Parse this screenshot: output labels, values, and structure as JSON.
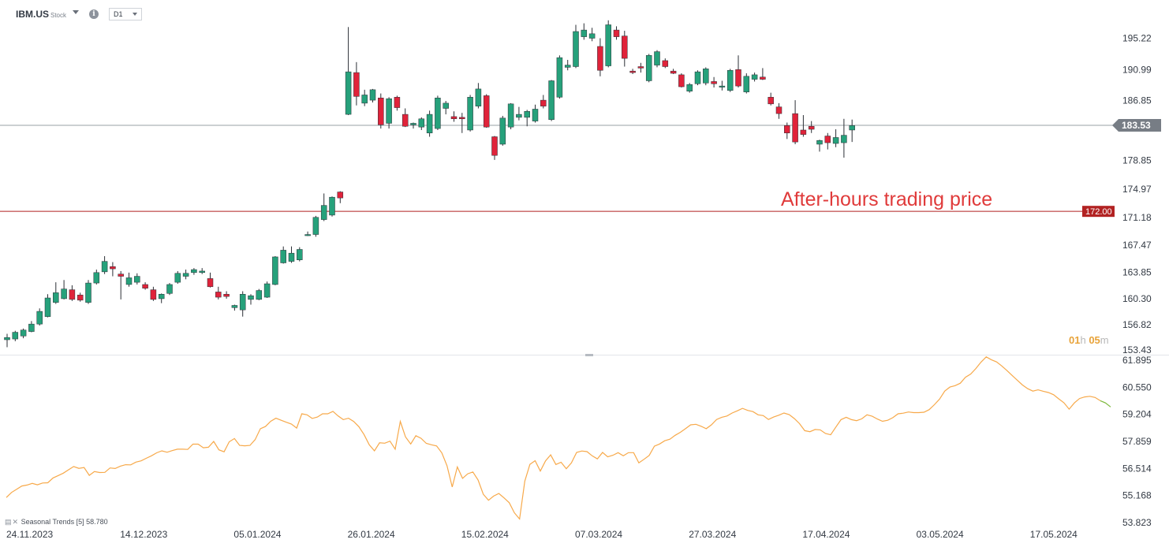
{
  "toolbar": {
    "symbol": "IBM.US",
    "instrument_type": "Stock",
    "interval": "D1",
    "info_icon": "info-icon",
    "dropdown_icon": "chevron-down-icon"
  },
  "countdown": {
    "hours": "01",
    "h": "h",
    "minutes": "05",
    "m": "m"
  },
  "indicator": {
    "name": "Seasonal  Trends  [5]  58.780",
    "icons": [
      "chart-icon",
      "close-icon"
    ]
  },
  "colors": {
    "up": "#26a17b",
    "down": "#e0233a",
    "current_line": "#9aa0a6",
    "current_tag": "#777d85",
    "after_hours": "#b22222",
    "after_hours_text": "#e03b3b",
    "seasonal_past": "#f7a94a",
    "seasonal_future": "#7cb83c",
    "axis_text": "#333a44"
  },
  "chart_data": [
    {
      "type": "candlestick",
      "symbol": "IBM.US",
      "interval": "D1",
      "ylim": [
        153.43,
        198.0
      ],
      "y_ticks": [
        "195.22",
        "190.99",
        "186.85",
        "178.85",
        "174.97",
        "171.18",
        "167.47",
        "163.85",
        "160.30",
        "156.82",
        "153.43"
      ],
      "x_ticks": [
        "24.11.2023",
        "14.12.2023",
        "05.01.2024",
        "26.01.2024",
        "15.02.2024",
        "07.03.2024",
        "27.03.2024",
        "17.04.2024",
        "03.05.2024",
        "17.05.2024"
      ],
      "x_tick_index": [
        0,
        14,
        28,
        42,
        56,
        70,
        84,
        98,
        112,
        126
      ],
      "current_price": {
        "label": "183.53",
        "value": 183.53
      },
      "after_hours": {
        "label": "172.00",
        "value": 172.0,
        "annotation": "After-hours trading price"
      },
      "candles": [
        {
          "o": 154.8,
          "h": 155.6,
          "l": 153.8,
          "c": 155.1
        },
        {
          "o": 154.9,
          "h": 156.0,
          "l": 154.6,
          "c": 155.8
        },
        {
          "o": 155.3,
          "h": 156.3,
          "l": 155.0,
          "c": 156.1
        },
        {
          "o": 155.9,
          "h": 157.3,
          "l": 155.8,
          "c": 156.9
        },
        {
          "o": 156.9,
          "h": 159.0,
          "l": 156.7,
          "c": 158.6
        },
        {
          "o": 157.9,
          "h": 160.9,
          "l": 157.8,
          "c": 160.4
        },
        {
          "o": 159.8,
          "h": 162.5,
          "l": 159.6,
          "c": 161.1
        },
        {
          "o": 160.3,
          "h": 162.8,
          "l": 160.2,
          "c": 161.6
        },
        {
          "o": 161.5,
          "h": 162.1,
          "l": 160.0,
          "c": 160.2
        },
        {
          "o": 160.8,
          "h": 161.1,
          "l": 159.9,
          "c": 160.1
        },
        {
          "o": 159.8,
          "h": 162.8,
          "l": 159.6,
          "c": 162.4
        },
        {
          "o": 162.4,
          "h": 164.2,
          "l": 162.2,
          "c": 163.8
        },
        {
          "o": 163.9,
          "h": 166.0,
          "l": 163.6,
          "c": 165.3
        },
        {
          "o": 164.6,
          "h": 165.2,
          "l": 163.3,
          "c": 164.3
        },
        {
          "o": 163.6,
          "h": 164.0,
          "l": 160.2,
          "c": 163.3
        },
        {
          "o": 162.2,
          "h": 163.8,
          "l": 161.9,
          "c": 163.1
        },
        {
          "o": 162.5,
          "h": 163.7,
          "l": 162.2,
          "c": 163.3
        },
        {
          "o": 162.2,
          "h": 162.5,
          "l": 161.5,
          "c": 161.7
        },
        {
          "o": 161.5,
          "h": 161.9,
          "l": 160.0,
          "c": 160.2
        },
        {
          "o": 160.3,
          "h": 161.0,
          "l": 159.7,
          "c": 160.9
        },
        {
          "o": 161.0,
          "h": 162.4,
          "l": 160.8,
          "c": 162.2
        },
        {
          "o": 162.5,
          "h": 164.0,
          "l": 162.3,
          "c": 163.7
        },
        {
          "o": 163.3,
          "h": 164.2,
          "l": 162.9,
          "c": 163.7
        },
        {
          "o": 163.8,
          "h": 164.4,
          "l": 163.5,
          "c": 164.2
        },
        {
          "o": 163.8,
          "h": 164.4,
          "l": 163.6,
          "c": 164.0
        },
        {
          "o": 163.0,
          "h": 163.8,
          "l": 161.8,
          "c": 161.9
        },
        {
          "o": 161.2,
          "h": 161.9,
          "l": 160.2,
          "c": 160.5
        },
        {
          "o": 160.9,
          "h": 161.3,
          "l": 160.3,
          "c": 160.6
        },
        {
          "o": 159.1,
          "h": 159.5,
          "l": 158.7,
          "c": 159.4
        },
        {
          "o": 158.8,
          "h": 161.3,
          "l": 157.9,
          "c": 160.9
        },
        {
          "o": 160.2,
          "h": 160.9,
          "l": 159.5,
          "c": 160.7
        },
        {
          "o": 160.2,
          "h": 161.6,
          "l": 160.1,
          "c": 161.4
        },
        {
          "o": 160.5,
          "h": 162.6,
          "l": 160.4,
          "c": 162.3
        },
        {
          "o": 162.2,
          "h": 166.0,
          "l": 162.1,
          "c": 165.9
        },
        {
          "o": 165.1,
          "h": 167.3,
          "l": 165.0,
          "c": 166.8
        },
        {
          "o": 165.3,
          "h": 167.3,
          "l": 165.1,
          "c": 166.4
        },
        {
          "o": 165.5,
          "h": 167.2,
          "l": 165.3,
          "c": 166.9
        },
        {
          "o": 168.9,
          "h": 169.3,
          "l": 168.7,
          "c": 168.9
        },
        {
          "o": 168.9,
          "h": 171.4,
          "l": 168.6,
          "c": 171.2
        },
        {
          "o": 170.9,
          "h": 174.4,
          "l": 170.7,
          "c": 172.8
        },
        {
          "o": 171.5,
          "h": 174.0,
          "l": 171.3,
          "c": 173.9
        },
        {
          "o": 174.6,
          "h": 174.7,
          "l": 173.1,
          "c": 173.8
        },
        {
          "o": 185.0,
          "h": 196.7,
          "l": 184.9,
          "c": 190.7
        },
        {
          "o": 190.6,
          "h": 192.0,
          "l": 186.2,
          "c": 187.4
        },
        {
          "o": 186.5,
          "h": 188.3,
          "l": 186.1,
          "c": 187.6
        },
        {
          "o": 186.9,
          "h": 188.4,
          "l": 186.6,
          "c": 188.3
        },
        {
          "o": 187.2,
          "h": 187.8,
          "l": 183.1,
          "c": 183.6
        },
        {
          "o": 183.8,
          "h": 187.3,
          "l": 183.1,
          "c": 187.1
        },
        {
          "o": 187.3,
          "h": 187.5,
          "l": 185.5,
          "c": 185.9
        },
        {
          "o": 185.0,
          "h": 185.8,
          "l": 183.3,
          "c": 183.4
        },
        {
          "o": 183.6,
          "h": 183.9,
          "l": 183.1,
          "c": 183.8
        },
        {
          "o": 183.3,
          "h": 184.6,
          "l": 182.9,
          "c": 184.4
        },
        {
          "o": 182.5,
          "h": 185.5,
          "l": 182.0,
          "c": 185.0
        },
        {
          "o": 183.1,
          "h": 187.5,
          "l": 182.9,
          "c": 187.2
        },
        {
          "o": 185.8,
          "h": 186.8,
          "l": 185.0,
          "c": 186.5
        },
        {
          "o": 184.7,
          "h": 185.4,
          "l": 184.0,
          "c": 184.4
        },
        {
          "o": 184.6,
          "h": 185.2,
          "l": 182.5,
          "c": 184.4
        },
        {
          "o": 182.9,
          "h": 187.6,
          "l": 182.7,
          "c": 187.3
        },
        {
          "o": 186.1,
          "h": 189.2,
          "l": 185.8,
          "c": 188.4
        },
        {
          "o": 187.5,
          "h": 187.7,
          "l": 183.2,
          "c": 183.3
        },
        {
          "o": 182.0,
          "h": 182.1,
          "l": 178.9,
          "c": 179.5
        },
        {
          "o": 181.0,
          "h": 184.8,
          "l": 180.8,
          "c": 184.5
        },
        {
          "o": 183.3,
          "h": 186.5,
          "l": 183.0,
          "c": 186.4
        },
        {
          "o": 184.6,
          "h": 186.0,
          "l": 184.2,
          "c": 185.0
        },
        {
          "o": 184.6,
          "h": 185.6,
          "l": 183.4,
          "c": 185.4
        },
        {
          "o": 184.1,
          "h": 186.3,
          "l": 183.9,
          "c": 185.7
        },
        {
          "o": 186.9,
          "h": 187.6,
          "l": 185.8,
          "c": 186.1
        },
        {
          "o": 184.3,
          "h": 189.6,
          "l": 184.1,
          "c": 189.5
        },
        {
          "o": 187.3,
          "h": 192.9,
          "l": 187.1,
          "c": 192.6
        },
        {
          "o": 191.3,
          "h": 192.3,
          "l": 190.9,
          "c": 191.6
        },
        {
          "o": 191.4,
          "h": 197.0,
          "l": 191.2,
          "c": 196.1
        },
        {
          "o": 195.4,
          "h": 197.2,
          "l": 195.0,
          "c": 196.3
        },
        {
          "o": 195.2,
          "h": 196.6,
          "l": 194.8,
          "c": 195.8
        },
        {
          "o": 194.1,
          "h": 195.2,
          "l": 190.1,
          "c": 190.9
        },
        {
          "o": 191.5,
          "h": 197.6,
          "l": 191.3,
          "c": 197.0
        },
        {
          "o": 196.3,
          "h": 196.8,
          "l": 195.0,
          "c": 195.4
        },
        {
          "o": 195.5,
          "h": 196.2,
          "l": 191.4,
          "c": 192.5
        },
        {
          "o": 190.8,
          "h": 191.1,
          "l": 190.4,
          "c": 190.6
        },
        {
          "o": 191.4,
          "h": 191.9,
          "l": 190.6,
          "c": 191.2
        },
        {
          "o": 189.5,
          "h": 193.1,
          "l": 189.3,
          "c": 192.9
        },
        {
          "o": 191.6,
          "h": 193.6,
          "l": 191.3,
          "c": 193.4
        },
        {
          "o": 192.2,
          "h": 192.5,
          "l": 191.2,
          "c": 191.4
        },
        {
          "o": 190.8,
          "h": 191.1,
          "l": 190.4,
          "c": 190.5
        },
        {
          "o": 190.3,
          "h": 190.5,
          "l": 188.6,
          "c": 188.7
        },
        {
          "o": 188.1,
          "h": 189.2,
          "l": 187.9,
          "c": 189.0
        },
        {
          "o": 189.1,
          "h": 190.9,
          "l": 188.9,
          "c": 190.7
        },
        {
          "o": 189.2,
          "h": 191.3,
          "l": 188.9,
          "c": 191.1
        },
        {
          "o": 189.4,
          "h": 190.0,
          "l": 188.6,
          "c": 189.1
        },
        {
          "o": 188.7,
          "h": 189.5,
          "l": 188.2,
          "c": 188.8
        },
        {
          "o": 188.2,
          "h": 191.1,
          "l": 188.0,
          "c": 190.9
        },
        {
          "o": 191.0,
          "h": 192.9,
          "l": 188.6,
          "c": 188.8
        },
        {
          "o": 188.0,
          "h": 190.5,
          "l": 187.8,
          "c": 190.1
        },
        {
          "o": 189.7,
          "h": 190.6,
          "l": 189.4,
          "c": 190.3
        },
        {
          "o": 190.0,
          "h": 191.2,
          "l": 189.6,
          "c": 189.7
        },
        {
          "o": 187.3,
          "h": 187.9,
          "l": 186.2,
          "c": 186.4
        },
        {
          "o": 186.0,
          "h": 186.5,
          "l": 184.4,
          "c": 185.1
        },
        {
          "o": 183.5,
          "h": 183.9,
          "l": 181.7,
          "c": 182.5
        },
        {
          "o": 185.1,
          "h": 186.9,
          "l": 181.0,
          "c": 181.3
        },
        {
          "o": 182.9,
          "h": 184.9,
          "l": 182.0,
          "c": 182.3
        },
        {
          "o": 183.4,
          "h": 184.1,
          "l": 182.5,
          "c": 183.0
        },
        {
          "o": 181.0,
          "h": 181.6,
          "l": 180.0,
          "c": 181.5
        },
        {
          "o": 182.1,
          "h": 182.5,
          "l": 180.3,
          "c": 181.2
        },
        {
          "o": 181.1,
          "h": 183.0,
          "l": 180.6,
          "c": 181.9
        },
        {
          "o": 181.2,
          "h": 184.4,
          "l": 179.2,
          "c": 182.2
        },
        {
          "o": 182.9,
          "h": 184.3,
          "l": 181.3,
          "c": 183.5
        }
      ]
    },
    {
      "type": "line",
      "name": "Seasonal  Trends  [5]",
      "last_value": "58.780",
      "ylim": [
        53.823,
        61.895
      ],
      "y_ticks": [
        "61.895",
        "60.550",
        "59.204",
        "57.859",
        "56.514",
        "55.168",
        "53.823"
      ],
      "x_ticks": [
        "24.11.2023",
        "14.12.2023",
        "05.01.2024",
        "26.01.2024",
        "15.02.2024",
        "07.03.2024",
        "27.03.2024",
        "17.04.2024",
        "03.05.2024",
        "17.05.2024"
      ],
      "x_tick_index": [
        0,
        14,
        28,
        42,
        56,
        70,
        84,
        98,
        112,
        126
      ],
      "split_index": 103,
      "values": [
        55.07,
        55.32,
        55.48,
        55.64,
        55.69,
        55.77,
        55.7,
        55.79,
        55.8,
        56.04,
        56.16,
        56.28,
        56.45,
        56.61,
        56.52,
        56.56,
        56.17,
        56.36,
        56.31,
        56.32,
        56.54,
        56.51,
        56.63,
        56.7,
        56.69,
        56.83,
        56.89,
        57.02,
        57.14,
        57.29,
        57.39,
        57.32,
        57.4,
        57.47,
        57.47,
        57.46,
        57.72,
        57.72,
        57.54,
        57.57,
        57.86,
        57.44,
        57.34,
        57.84,
        58.0,
        57.66,
        57.64,
        57.66,
        57.95,
        58.49,
        58.6,
        58.86,
        59.01,
        58.91,
        58.81,
        58.72,
        58.52,
        59.23,
        59.18,
        59.0,
        59.07,
        59.23,
        59.23,
        59.35,
        59.12,
        58.94,
        59.01,
        58.85,
        58.59,
        58.2,
        57.69,
        57.39,
        57.79,
        57.77,
        57.87,
        57.47,
        58.85,
        58.08,
        57.73,
        58.14,
        58.01,
        57.76,
        57.69,
        57.63,
        57.29,
        56.65,
        55.59,
        56.59,
        56.02,
        56.25,
        56.34,
        55.94,
        55.23,
        54.93,
        55.14,
        55.27,
        55.05,
        54.81,
        54.31,
        54.0,
        55.88,
        56.72,
        56.9,
        56.38,
        56.89,
        57.19,
        56.71,
        56.82,
        56.5,
        56.79,
        57.31,
        57.38,
        57.35,
        57.14,
        56.99,
        57.31,
        57.09,
        57.17,
        57.3,
        57.14,
        57.3,
        57.3,
        56.79,
        56.97,
        57.16,
        57.62,
        57.73,
        57.89,
        57.97,
        58.16,
        58.31,
        58.49,
        58.68,
        58.71,
        58.61,
        58.49,
        58.68,
        58.95,
        59.06,
        59.12,
        59.27,
        59.38,
        59.5,
        59.4,
        59.34,
        59.18,
        59.14,
        58.95,
        59.07,
        59.16,
        59.27,
        59.19,
        58.99,
        58.74,
        58.39,
        58.34,
        58.45,
        58.43,
        58.25,
        58.19,
        58.57,
        58.94,
        59.06,
        58.94,
        58.89,
        58.98,
        59.18,
        59.11,
        58.97,
        58.86,
        58.91,
        59.04,
        59.23,
        59.26,
        59.32,
        59.29,
        59.29,
        59.31,
        59.44,
        59.68,
        59.96,
        60.36,
        60.56,
        60.63,
        60.75,
        61.05,
        61.2,
        61.48,
        61.8,
        62.06,
        61.92,
        61.81,
        61.61,
        61.38,
        61.14,
        60.9,
        60.66,
        60.48,
        60.36,
        60.42,
        60.35,
        60.29,
        60.18,
        59.97,
        59.78,
        59.46,
        59.77,
        59.99,
        60.07,
        60.1,
        60.04,
        59.88,
        59.77,
        59.57
      ]
    }
  ]
}
